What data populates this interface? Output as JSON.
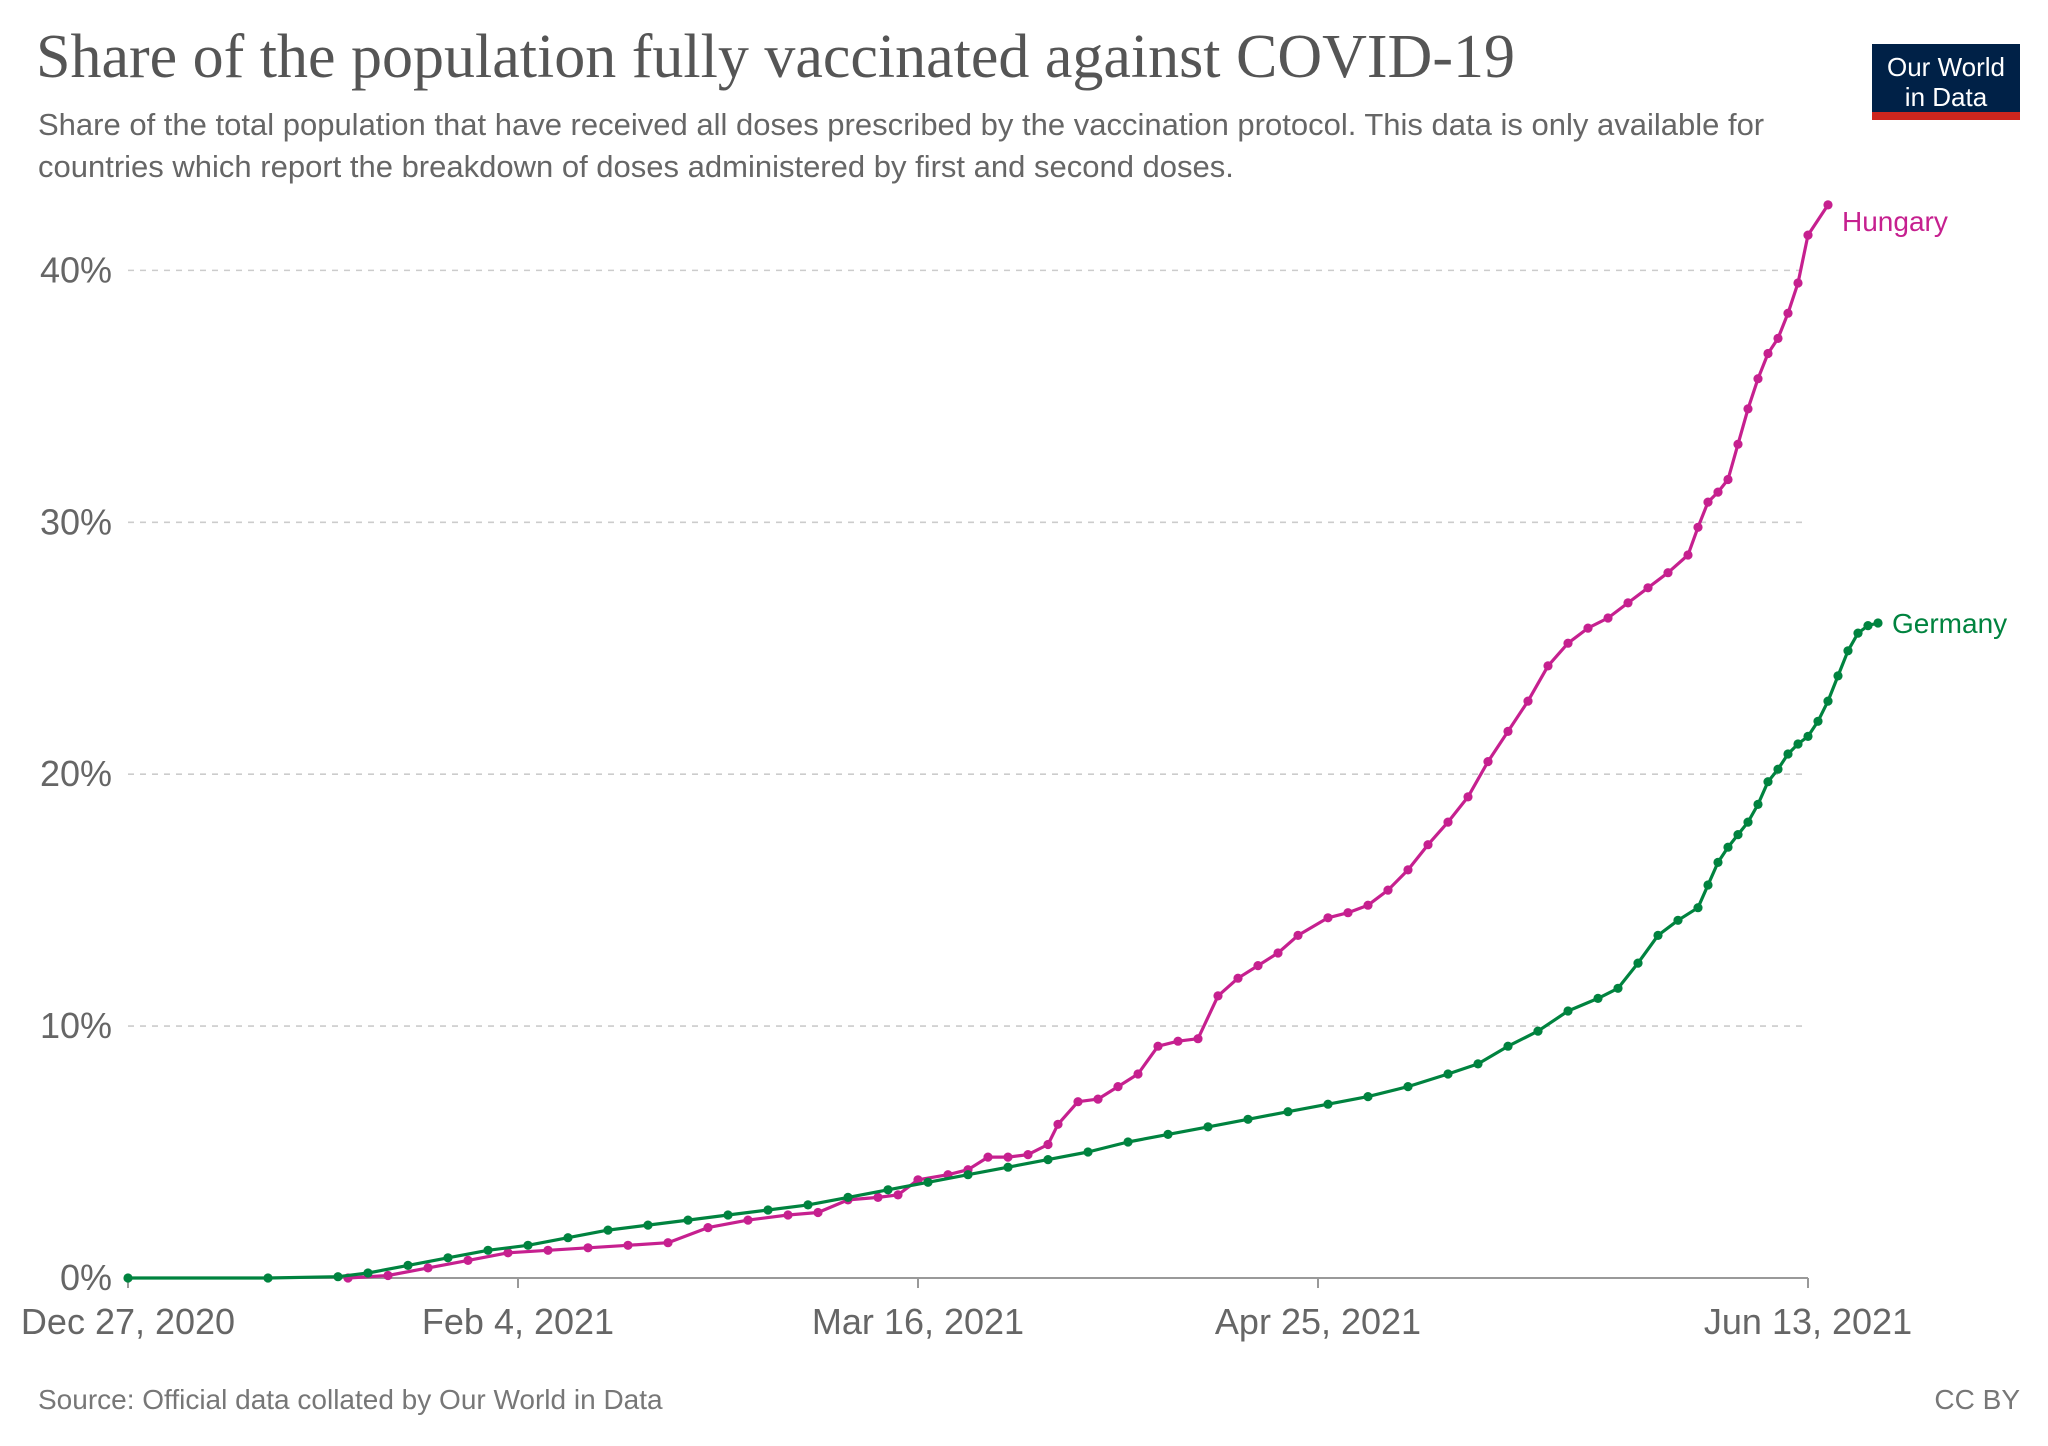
{
  "header": {
    "title": "Share of the population fully vaccinated against COVID-19",
    "subtitle": "Share of the total population that have received all doses prescribed by the vaccination protocol. This data is only available for countries which report the breakdown of doses administered by first and second doses."
  },
  "logo": {
    "line1": "Our World",
    "line2": "in Data"
  },
  "footer": {
    "source": "Source: Official data collated by Our World in Data",
    "license": "CC BY"
  },
  "colors": {
    "Hungary": "#c6208f",
    "Germany": "#00833f"
  },
  "chart_data": {
    "type": "line",
    "title": "Share of the population fully vaccinated against COVID-19",
    "ylabel": "",
    "xlabel": "",
    "x_range": [
      "2020-12-27",
      "2021-06-13"
    ],
    "ylim": [
      0,
      42
    ],
    "y_ticks": [
      {
        "value": 0,
        "label": "0%"
      },
      {
        "value": 10,
        "label": "10%"
      },
      {
        "value": 20,
        "label": "20%"
      },
      {
        "value": 30,
        "label": "30%"
      },
      {
        "value": 40,
        "label": "40%"
      }
    ],
    "x_ticks": [
      {
        "date": "2020-12-27",
        "label": "Dec 27, 2020"
      },
      {
        "date": "2021-02-04",
        "label": "Feb 4, 2021"
      },
      {
        "date": "2021-03-16",
        "label": "Mar 16, 2021"
      },
      {
        "date": "2021-04-25",
        "label": "Apr 25, 2021"
      },
      {
        "date": "2021-06-13",
        "label": "Jun 13, 2021"
      }
    ],
    "grid": "horizontal dashed",
    "legend": "end-of-line labels",
    "series": [
      {
        "name": "Hungary",
        "points": [
          [
            "2021-01-18",
            0.0
          ],
          [
            "2021-01-22",
            0.1
          ],
          [
            "2021-01-26",
            0.4
          ],
          [
            "2021-01-30",
            0.7
          ],
          [
            "2021-02-03",
            1.0
          ],
          [
            "2021-02-07",
            1.1
          ],
          [
            "2021-02-11",
            1.2
          ],
          [
            "2021-02-15",
            1.3
          ],
          [
            "2021-02-19",
            1.4
          ],
          [
            "2021-02-23",
            2.0
          ],
          [
            "2021-02-27",
            2.3
          ],
          [
            "2021-03-03",
            2.5
          ],
          [
            "2021-03-06",
            2.6
          ],
          [
            "2021-03-09",
            3.1
          ],
          [
            "2021-03-12",
            3.2
          ],
          [
            "2021-03-14",
            3.3
          ],
          [
            "2021-03-16",
            3.9
          ],
          [
            "2021-03-19",
            4.1
          ],
          [
            "2021-03-21",
            4.3
          ],
          [
            "2021-03-23",
            4.8
          ],
          [
            "2021-03-25",
            4.8
          ],
          [
            "2021-03-27",
            4.9
          ],
          [
            "2021-03-29",
            5.3
          ],
          [
            "2021-03-30",
            6.1
          ],
          [
            "2021-04-01",
            7.0
          ],
          [
            "2021-04-03",
            7.1
          ],
          [
            "2021-04-05",
            7.6
          ],
          [
            "2021-04-07",
            8.1
          ],
          [
            "2021-04-09",
            9.2
          ],
          [
            "2021-04-11",
            9.4
          ],
          [
            "2021-04-13",
            9.5
          ],
          [
            "2021-04-15",
            11.2
          ],
          [
            "2021-04-17",
            11.9
          ],
          [
            "2021-04-19",
            12.4
          ],
          [
            "2021-04-21",
            12.9
          ],
          [
            "2021-04-23",
            13.6
          ],
          [
            "2021-04-26",
            14.3
          ],
          [
            "2021-04-28",
            14.5
          ],
          [
            "2021-04-30",
            14.8
          ],
          [
            "2021-05-02",
            15.4
          ],
          [
            "2021-05-04",
            16.2
          ],
          [
            "2021-05-06",
            17.2
          ],
          [
            "2021-05-08",
            18.1
          ],
          [
            "2021-05-10",
            19.1
          ],
          [
            "2021-05-12",
            20.5
          ],
          [
            "2021-05-14",
            21.7
          ],
          [
            "2021-05-16",
            22.9
          ],
          [
            "2021-05-18",
            24.3
          ],
          [
            "2021-05-20",
            25.2
          ],
          [
            "2021-05-22",
            25.8
          ],
          [
            "2021-05-24",
            26.2
          ],
          [
            "2021-05-26",
            26.8
          ],
          [
            "2021-05-28",
            27.4
          ],
          [
            "2021-05-30",
            28.0
          ],
          [
            "2021-06-01",
            28.7
          ],
          [
            "2021-06-02",
            29.8
          ],
          [
            "2021-06-03",
            30.8
          ],
          [
            "2021-06-04",
            31.2
          ],
          [
            "2021-06-05",
            31.7
          ],
          [
            "2021-06-06",
            33.1
          ],
          [
            "2021-06-07",
            34.5
          ],
          [
            "2021-06-08",
            35.7
          ],
          [
            "2021-06-09",
            36.7
          ],
          [
            "2021-06-10",
            37.3
          ],
          [
            "2021-06-11",
            38.3
          ],
          [
            "2021-06-12",
            39.5
          ],
          [
            "2021-06-13",
            41.4
          ],
          [
            "2021-06-15",
            42.6
          ]
        ]
      },
      {
        "name": "Germany",
        "points": [
          [
            "2020-12-27",
            0.0
          ],
          [
            "2021-01-10",
            0.0
          ],
          [
            "2021-01-17",
            0.05
          ],
          [
            "2021-01-20",
            0.2
          ],
          [
            "2021-01-24",
            0.5
          ],
          [
            "2021-01-28",
            0.8
          ],
          [
            "2021-02-01",
            1.1
          ],
          [
            "2021-02-05",
            1.3
          ],
          [
            "2021-02-09",
            1.6
          ],
          [
            "2021-02-13",
            1.9
          ],
          [
            "2021-02-17",
            2.1
          ],
          [
            "2021-02-21",
            2.3
          ],
          [
            "2021-02-25",
            2.5
          ],
          [
            "2021-03-01",
            2.7
          ],
          [
            "2021-03-05",
            2.9
          ],
          [
            "2021-03-09",
            3.2
          ],
          [
            "2021-03-13",
            3.5
          ],
          [
            "2021-03-17",
            3.8
          ],
          [
            "2021-03-21",
            4.1
          ],
          [
            "2021-03-25",
            4.4
          ],
          [
            "2021-03-29",
            4.7
          ],
          [
            "2021-04-02",
            5.0
          ],
          [
            "2021-04-06",
            5.4
          ],
          [
            "2021-04-10",
            5.7
          ],
          [
            "2021-04-14",
            6.0
          ],
          [
            "2021-04-18",
            6.3
          ],
          [
            "2021-04-22",
            6.6
          ],
          [
            "2021-04-26",
            6.9
          ],
          [
            "2021-04-30",
            7.2
          ],
          [
            "2021-05-04",
            7.6
          ],
          [
            "2021-05-08",
            8.1
          ],
          [
            "2021-05-11",
            8.5
          ],
          [
            "2021-05-14",
            9.2
          ],
          [
            "2021-05-17",
            9.8
          ],
          [
            "2021-05-20",
            10.6
          ],
          [
            "2021-05-23",
            11.1
          ],
          [
            "2021-05-25",
            11.5
          ],
          [
            "2021-05-27",
            12.5
          ],
          [
            "2021-05-29",
            13.6
          ],
          [
            "2021-05-31",
            14.2
          ],
          [
            "2021-06-02",
            14.7
          ],
          [
            "2021-06-03",
            15.6
          ],
          [
            "2021-06-04",
            16.5
          ],
          [
            "2021-06-05",
            17.1
          ],
          [
            "2021-06-06",
            17.6
          ],
          [
            "2021-06-07",
            18.1
          ],
          [
            "2021-06-08",
            18.8
          ],
          [
            "2021-06-09",
            19.7
          ],
          [
            "2021-06-10",
            20.2
          ],
          [
            "2021-06-11",
            20.8
          ],
          [
            "2021-06-12",
            21.2
          ],
          [
            "2021-06-13",
            21.5
          ],
          [
            "2021-06-14",
            22.1
          ],
          [
            "2021-06-15",
            22.9
          ],
          [
            "2021-06-16",
            23.9
          ],
          [
            "2021-06-17",
            24.9
          ],
          [
            "2021-06-18",
            25.6
          ],
          [
            "2021-06-19",
            25.9
          ],
          [
            "2021-06-20",
            26.0
          ]
        ]
      }
    ]
  }
}
